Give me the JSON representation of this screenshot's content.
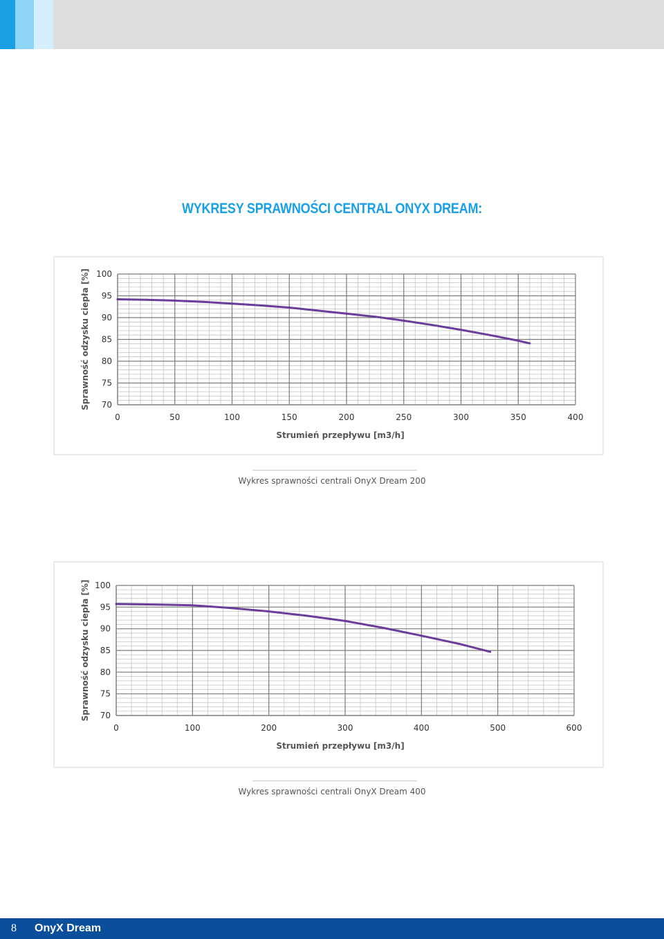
{
  "header": {
    "title": "WYKRESY SPRAWNOŚCI CENTRAL ONYX DREAM:"
  },
  "chart_data": [
    {
      "type": "line",
      "xlabel": "Strumień przepływu  [m3/h]",
      "ylabel": "Sprawność odzysku ciepła [%]",
      "xlim": [
        0,
        400
      ],
      "ylim": [
        70,
        100
      ],
      "xticks": [
        0,
        50,
        100,
        150,
        200,
        250,
        300,
        350,
        400
      ],
      "yticks": [
        70,
        75,
        80,
        85,
        90,
        95,
        100
      ],
      "grid": true,
      "color": "#6a3d9a",
      "series": [
        {
          "x": [
            0,
            25,
            50,
            75,
            100,
            125,
            150,
            175,
            200,
            225,
            250,
            275,
            300,
            325,
            350,
            360
          ],
          "y": [
            94.2,
            94.1,
            93.9,
            93.6,
            93.2,
            92.8,
            92.3,
            91.6,
            90.9,
            90.2,
            89.3,
            88.3,
            87.2,
            86.0,
            84.7,
            84.1
          ]
        }
      ],
      "caption": "Wykres sprawności centrali OnyX Dream 200"
    },
    {
      "type": "line",
      "xlabel": "Strumień przepływu  [m3/h]",
      "ylabel": "Sprawność odzysku ciepła [%]",
      "xlim": [
        0,
        600
      ],
      "ylim": [
        70,
        100
      ],
      "xticks": [
        0,
        100,
        200,
        300,
        400,
        500,
        600
      ],
      "yticks": [
        70,
        75,
        80,
        85,
        90,
        95,
        100
      ],
      "grid": true,
      "color": "#6a3d9a",
      "series": [
        {
          "x": [
            0,
            50,
            100,
            150,
            200,
            250,
            300,
            350,
            400,
            450,
            490
          ],
          "y": [
            95.7,
            95.6,
            95.4,
            94.8,
            94.0,
            93.0,
            91.8,
            90.2,
            88.4,
            86.5,
            84.7
          ]
        }
      ],
      "caption": "Wykres sprawności centrali OnyX Dream 400"
    }
  ],
  "footer": {
    "page_number": "8",
    "brand": "OnyX Dream"
  }
}
